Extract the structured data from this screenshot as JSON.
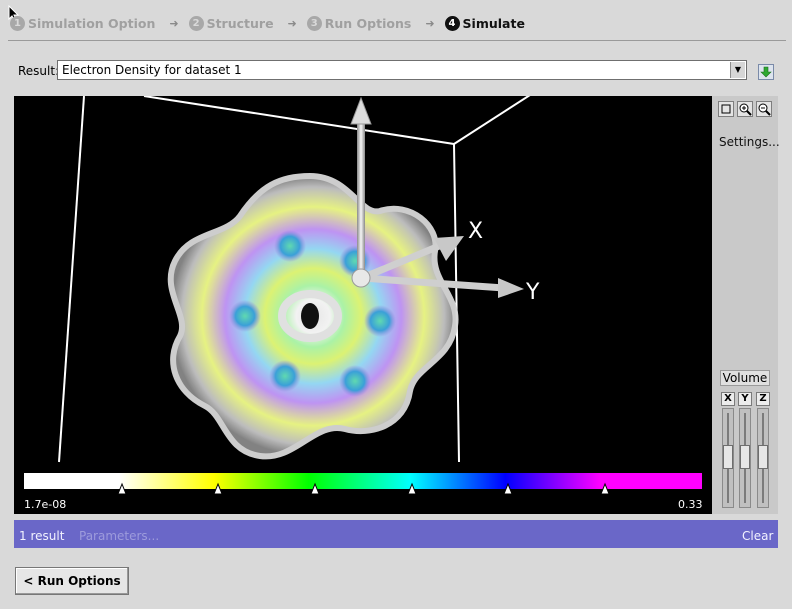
{
  "wizard": {
    "steps": [
      {
        "num": "1",
        "label": "Simulation Option",
        "state": "done"
      },
      {
        "num": "2",
        "label": "Structure",
        "state": "done"
      },
      {
        "num": "3",
        "label": "Run Options",
        "state": "done"
      },
      {
        "num": "4",
        "label": "Simulate",
        "state": "current"
      }
    ]
  },
  "result": {
    "label": "Result:",
    "selected": "Electron Density for dataset 1"
  },
  "viewer": {
    "axes": {
      "x": "X",
      "y": "Y"
    },
    "colorbar": {
      "min": "1.7e-08",
      "max": "0.33"
    },
    "toolbar": [
      "reset-view-icon",
      "zoom-in-icon",
      "zoom-out-icon"
    ],
    "settings_label": "Settings...",
    "volume_label": "Volume",
    "volume_axes": [
      "X",
      "Y",
      "Z"
    ]
  },
  "results_bar": {
    "count": "1 result",
    "parameters": "Parameters...",
    "clear": "Clear",
    "color": "#6a67c8"
  },
  "nav": {
    "back_label": "< Run Options"
  }
}
